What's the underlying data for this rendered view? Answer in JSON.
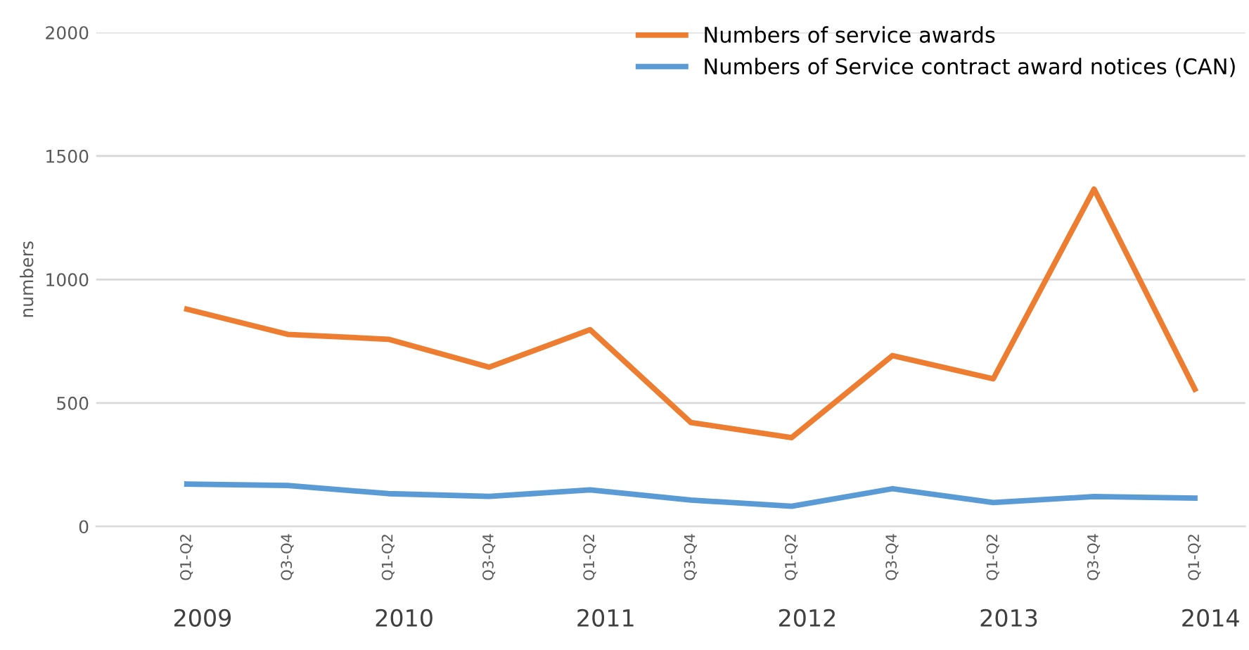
{
  "chart_data": {
    "type": "line",
    "ylabel": "numbers",
    "categories": [
      "Q1-Q2",
      "Q3-Q4",
      "Q1-Q2",
      "Q3-Q4",
      "Q1-Q2",
      "Q3-Q4",
      "Q1-Q2",
      "Q3-Q4",
      "Q1-Q2",
      "Q3-Q4",
      "Q1-Q2"
    ],
    "series": [
      {
        "name": "Numbers of service awards",
        "color": "#ed7d31",
        "values": [
          880,
          778,
          758,
          645,
          797,
          421,
          360,
          692,
          598,
          1366,
          556
        ]
      },
      {
        "name": "Numbers of Service contract award notices (CAN)",
        "color": "#5b9bd5",
        "values": [
          172,
          166,
          133,
          122,
          148,
          107,
          82,
          153,
          97,
          121,
          115
        ]
      }
    ],
    "annotations": [
      "2009",
      "2010",
      "2011",
      "2012",
      "2013",
      "2014"
    ],
    "ylim": [
      0,
      2000
    ],
    "yticks": [
      0,
      500,
      1000,
      1500,
      2000
    ],
    "grid": "y",
    "legend": "top right",
    "marker": "none",
    "line_style": "solid"
  }
}
